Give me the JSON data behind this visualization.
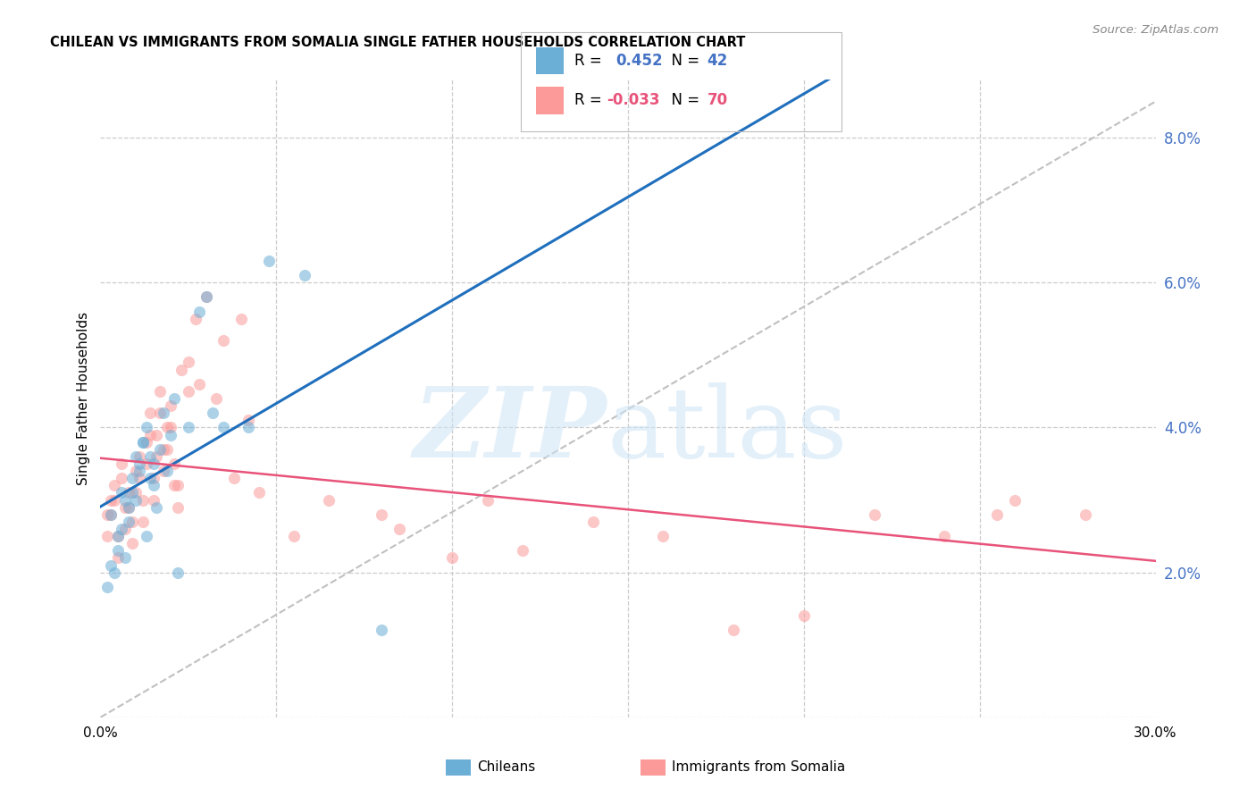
{
  "title": "CHILEAN VS IMMIGRANTS FROM SOMALIA SINGLE FATHER HOUSEHOLDS CORRELATION CHART",
  "source": "Source: ZipAtlas.com",
  "ylabel": "Single Father Households",
  "xlim": [
    0.0,
    30.0
  ],
  "ylim": [
    0.0,
    8.8
  ],
  "blue_color": "#6baed6",
  "pink_color": "#fb9a99",
  "trend_blue": "#1f6fbd",
  "trend_pink": "#e8537a",
  "chileans_x": [
    0.3,
    0.5,
    0.6,
    0.7,
    0.8,
    0.9,
    1.0,
    1.1,
    1.2,
    1.3,
    1.4,
    1.5,
    1.6,
    1.7,
    1.8,
    1.9,
    2.0,
    2.1,
    2.5,
    2.8,
    3.0,
    3.2,
    3.5,
    4.2,
    4.8,
    5.8,
    0.2,
    0.3,
    0.4,
    0.5,
    0.6,
    0.7,
    0.8,
    0.9,
    1.0,
    1.1,
    1.2,
    1.3,
    1.4,
    1.5,
    2.2,
    8.0
  ],
  "chileans_y": [
    2.8,
    2.5,
    3.1,
    2.2,
    2.7,
    3.3,
    3.0,
    3.5,
    3.8,
    4.0,
    3.6,
    3.2,
    2.9,
    3.7,
    4.2,
    3.4,
    3.9,
    4.4,
    4.0,
    5.6,
    5.8,
    4.2,
    4.0,
    4.0,
    6.3,
    6.1,
    1.8,
    2.1,
    2.0,
    2.3,
    2.6,
    3.0,
    2.9,
    3.1,
    3.6,
    3.4,
    3.8,
    2.5,
    3.3,
    3.5,
    2.0,
    1.2
  ],
  "somalia_x": [
    0.2,
    0.3,
    0.4,
    0.5,
    0.6,
    0.7,
    0.8,
    0.9,
    1.0,
    1.1,
    1.2,
    1.3,
    1.4,
    1.5,
    1.6,
    1.7,
    1.8,
    1.9,
    2.0,
    2.1,
    2.2,
    2.3,
    2.5,
    2.7,
    3.0,
    3.3,
    3.8,
    4.5,
    5.5,
    8.5,
    11.0,
    25.5,
    0.2,
    0.3,
    0.4,
    0.5,
    0.6,
    0.7,
    0.8,
    0.9,
    1.0,
    1.1,
    1.2,
    1.3,
    1.4,
    1.5,
    1.6,
    1.7,
    1.8,
    1.9,
    2.0,
    2.1,
    2.2,
    2.5,
    2.8,
    3.5,
    4.0,
    4.2,
    6.5,
    8.0,
    10.0,
    12.0,
    14.0,
    16.0,
    18.0,
    20.0,
    22.0,
    24.0,
    26.0,
    28.0
  ],
  "somalia_y": [
    2.8,
    3.0,
    3.2,
    2.5,
    3.5,
    2.9,
    3.1,
    2.7,
    3.4,
    3.6,
    3.0,
    3.8,
    4.2,
    3.3,
    3.9,
    4.5,
    3.7,
    4.0,
    4.3,
    3.5,
    3.2,
    4.8,
    4.9,
    5.5,
    5.8,
    4.4,
    3.3,
    3.1,
    2.5,
    2.6,
    3.0,
    2.8,
    2.5,
    2.8,
    3.0,
    2.2,
    3.3,
    2.6,
    2.9,
    2.4,
    3.1,
    3.3,
    2.7,
    3.5,
    3.9,
    3.0,
    3.6,
    4.2,
    3.4,
    3.7,
    4.0,
    3.2,
    2.9,
    4.5,
    4.6,
    5.2,
    5.5,
    4.1,
    3.0,
    2.8,
    2.2,
    2.3,
    2.7,
    2.5,
    1.2,
    1.4,
    2.8,
    2.5,
    3.0,
    2.8
  ]
}
